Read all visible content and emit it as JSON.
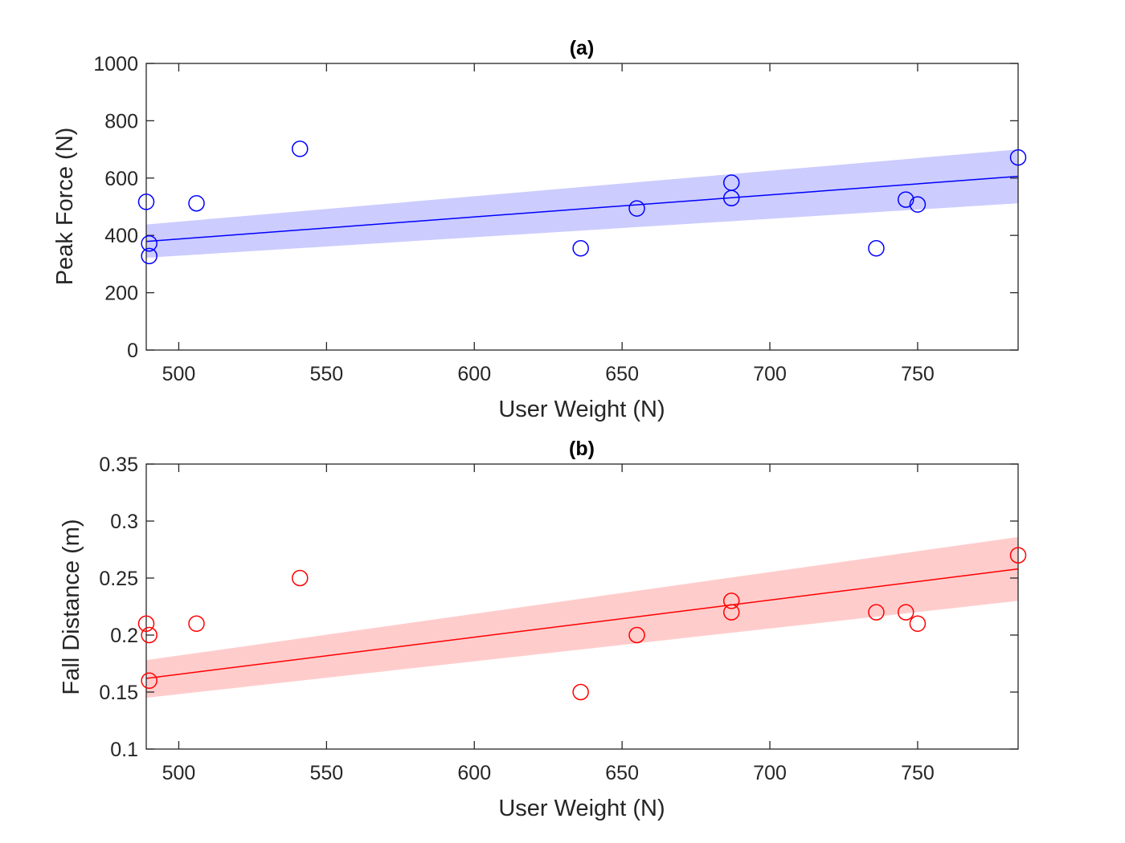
{
  "chart_data": [
    {
      "type": "scatter",
      "title": "(a)",
      "xlabel": "User Weight (N)",
      "ylabel": "Peak Force (N)",
      "xlim": [
        489,
        784
      ],
      "ylim": [
        0,
        1000
      ],
      "xticks": [
        500,
        550,
        600,
        650,
        700,
        750
      ],
      "yticks": [
        0,
        200,
        400,
        600,
        800,
        1000
      ],
      "grid": false,
      "color": "#0000ff",
      "band_color": "#ccccff",
      "points": [
        {
          "x": 489,
          "y": 517
        },
        {
          "x": 490,
          "y": 372
        },
        {
          "x": 490,
          "y": 328
        },
        {
          "x": 506,
          "y": 512
        },
        {
          "x": 541,
          "y": 702
        },
        {
          "x": 636,
          "y": 355
        },
        {
          "x": 655,
          "y": 494
        },
        {
          "x": 687,
          "y": 584
        },
        {
          "x": 687,
          "y": 530
        },
        {
          "x": 736,
          "y": 355
        },
        {
          "x": 746,
          "y": 525
        },
        {
          "x": 750,
          "y": 508
        },
        {
          "x": 784,
          "y": 672
        }
      ],
      "fit": {
        "x": [
          489,
          784
        ],
        "y": [
          379,
          606
        ],
        "lower": [
          322,
          512
        ],
        "upper": [
          438,
          700
        ]
      }
    },
    {
      "type": "scatter",
      "title": "(b)",
      "xlabel": "User Weight (N)",
      "ylabel": "Fall Distance (m)",
      "xlim": [
        489,
        784
      ],
      "ylim": [
        0.1,
        0.35
      ],
      "xticks": [
        500,
        550,
        600,
        650,
        700,
        750
      ],
      "yticks": [
        0.1,
        0.15,
        0.2,
        0.25,
        0.3,
        0.35
      ],
      "grid": false,
      "color": "#ff0000",
      "band_color": "#ffcccc",
      "points": [
        {
          "x": 489,
          "y": 0.21
        },
        {
          "x": 490,
          "y": 0.2
        },
        {
          "x": 490,
          "y": 0.16
        },
        {
          "x": 506,
          "y": 0.21
        },
        {
          "x": 541,
          "y": 0.25
        },
        {
          "x": 636,
          "y": 0.15
        },
        {
          "x": 655,
          "y": 0.2
        },
        {
          "x": 687,
          "y": 0.23
        },
        {
          "x": 687,
          "y": 0.22
        },
        {
          "x": 736,
          "y": 0.22
        },
        {
          "x": 746,
          "y": 0.22
        },
        {
          "x": 750,
          "y": 0.21
        },
        {
          "x": 784,
          "y": 0.27
        }
      ],
      "fit": {
        "x": [
          489,
          784
        ],
        "y": [
          0.162,
          0.258
        ],
        "lower": [
          0.145,
          0.23
        ],
        "upper": [
          0.178,
          0.286
        ]
      }
    }
  ]
}
